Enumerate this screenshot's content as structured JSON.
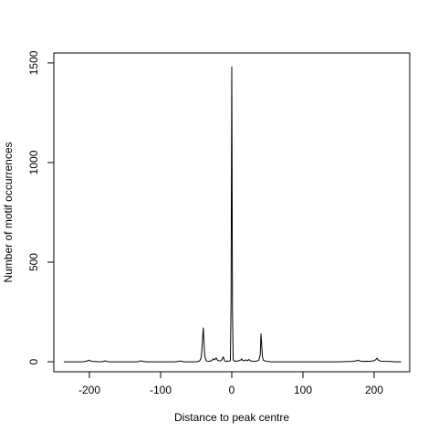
{
  "chart_data": {
    "type": "line",
    "title": "",
    "xlabel": "Distance to peak centre",
    "ylabel": "Number of motif occurrences",
    "xlim": [
      -250,
      250
    ],
    "ylim": [
      -50,
      1550
    ],
    "xticks": [
      -200,
      -100,
      0,
      100,
      200
    ],
    "yticks": [
      0,
      500,
      1000,
      1500
    ],
    "xtick_labels": [
      "-200",
      "-100",
      "0",
      "100",
      "200"
    ],
    "ytick_labels": [
      "0",
      "500",
      "1000",
      "1500"
    ],
    "grid": false,
    "legend": "none",
    "line_color": "#000000",
    "series": [
      {
        "x": [
          -236,
          -210,
          -205,
          -203,
          -200,
          -197,
          -185,
          -180,
          -178,
          -176,
          -172,
          -165,
          -150,
          -132,
          -130,
          -128,
          -125,
          -120,
          -110,
          -100,
          -90,
          -80,
          -75,
          -72,
          -70,
          -68,
          -65,
          -60,
          -55,
          -50,
          -47,
          -45,
          -43,
          -42,
          -41,
          -40,
          -39,
          -38,
          -36,
          -34,
          -32,
          -30,
          -28,
          -26,
          -24,
          -22,
          -20,
          -18,
          -16,
          -14,
          -12,
          -11,
          -10,
          -9,
          -8,
          -6,
          -4,
          -2,
          -1,
          0,
          1,
          2,
          4,
          6,
          8,
          10,
          12,
          13,
          14,
          15,
          16,
          18,
          20,
          22,
          24,
          25,
          26,
          28,
          30,
          32,
          34,
          36,
          38,
          40,
          41,
          42,
          43,
          44,
          46,
          48,
          50,
          55,
          60,
          70,
          80,
          100,
          120,
          150,
          170,
          175,
          178,
          180,
          183,
          190,
          195,
          198,
          200,
          202,
          204,
          206,
          210,
          220,
          230,
          238
        ],
        "y": [
          0,
          0,
          2,
          5,
          8,
          2,
          0,
          2,
          5,
          2,
          0,
          0,
          0,
          0,
          3,
          5,
          2,
          0,
          0,
          0,
          0,
          0,
          2,
          4,
          2,
          0,
          0,
          0,
          0,
          0,
          2,
          5,
          20,
          60,
          120,
          170,
          100,
          30,
          5,
          3,
          2,
          4,
          6,
          15,
          10,
          20,
          8,
          5,
          5,
          10,
          25,
          15,
          5,
          3,
          2,
          4,
          3,
          6,
          300,
          1480,
          250,
          8,
          3,
          4,
          3,
          6,
          8,
          10,
          15,
          8,
          5,
          6,
          10,
          5,
          12,
          8,
          5,
          4,
          3,
          2,
          3,
          5,
          8,
          35,
          140,
          90,
          30,
          10,
          5,
          3,
          2,
          0,
          0,
          0,
          0,
          0,
          0,
          0,
          2,
          5,
          8,
          4,
          2,
          3,
          2,
          5,
          5,
          10,
          18,
          8,
          3,
          2,
          0,
          0
        ]
      }
    ]
  }
}
